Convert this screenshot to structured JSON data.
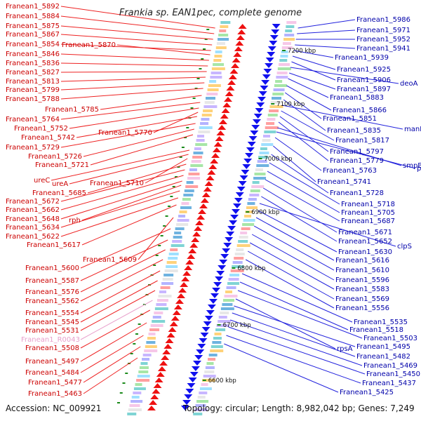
{
  "title": "Frankia sp. EAN1pec, complete genome",
  "accession": "Accession: NC_009921",
  "topology": "Topology: circular; Length: 8,982,042 bp; Genes: 7,249",
  "colors": {
    "left_label": "#cc0000",
    "left_line": "#ee2222",
    "right_label": "#0000aa",
    "right_line": "#2222dd",
    "rna_label": "#e8a0cc",
    "backbone": "#8a8a8a",
    "kbp_tick": "#1a8a1a"
  },
  "kbp_ticks": [
    "7200 kbp",
    "7100 kbp",
    "7000 kbp",
    "6900 kbp",
    "6800 kbp",
    "6700 kbp",
    "6600 kbp"
  ],
  "left_labels": [
    {
      "text": "Franean1_5892",
      "type": "cds"
    },
    {
      "text": "Franean1_5884",
      "type": "cds"
    },
    {
      "text": "Franean1_5875",
      "type": "cds"
    },
    {
      "text": "Franean1_5867",
      "type": "cds"
    },
    {
      "text": "Franean1_5854",
      "type": "cds"
    },
    {
      "text": "Franean1_5870",
      "type": "cds"
    },
    {
      "text": "Franean1_5846",
      "type": "cds"
    },
    {
      "text": "Franean1_5836",
      "type": "cds"
    },
    {
      "text": "Franean1_5827",
      "type": "cds"
    },
    {
      "text": "Franean1_5813",
      "type": "cds"
    },
    {
      "text": "Franean1_5799",
      "type": "cds"
    },
    {
      "text": "Franean1_5788",
      "type": "cds"
    },
    {
      "text": "Franean1_5785",
      "type": "cds"
    },
    {
      "text": "Franean1_5764",
      "type": "cds"
    },
    {
      "text": "Franean1_5752",
      "type": "cds"
    },
    {
      "text": "Franean1_5770",
      "type": "cds"
    },
    {
      "text": "Franean1_5742",
      "type": "cds"
    },
    {
      "text": "Franean1_5729",
      "type": "cds"
    },
    {
      "text": "Franean1_5726",
      "type": "cds"
    },
    {
      "text": "Franean1_5721",
      "type": "cds"
    },
    {
      "text": "ureC",
      "type": "cds"
    },
    {
      "text": "ureA",
      "type": "cds"
    },
    {
      "text": "Franean1_5710",
      "type": "cds"
    },
    {
      "text": "Franean1_5685",
      "type": "cds"
    },
    {
      "text": "Franean1_5672",
      "type": "cds"
    },
    {
      "text": "Franean1_5662",
      "type": "cds"
    },
    {
      "text": "Franean1_5648",
      "type": "cds"
    },
    {
      "text": "rph",
      "type": "cds"
    },
    {
      "text": "Franean1_5634",
      "type": "cds"
    },
    {
      "text": "Franean1_5622",
      "type": "cds"
    },
    {
      "text": "Franean1_5617",
      "type": "cds"
    },
    {
      "text": "Franean1_5609",
      "type": "cds"
    },
    {
      "text": "Franean1_5600",
      "type": "cds"
    },
    {
      "text": "Franean1_5587",
      "type": "cds"
    },
    {
      "text": "Franean1_5576",
      "type": "cds"
    },
    {
      "text": "Franean1_5562",
      "type": "cds"
    },
    {
      "text": "Franean1_5554",
      "type": "cds"
    },
    {
      "text": "Franean1_5545",
      "type": "cds"
    },
    {
      "text": "Franean1_5531",
      "type": "cds"
    },
    {
      "text": "Franean1_R0043",
      "type": "rna"
    },
    {
      "text": "Franean1_5508",
      "type": "cds"
    },
    {
      "text": "Franean1_5497",
      "type": "cds"
    },
    {
      "text": "Franean1_5484",
      "type": "cds"
    },
    {
      "text": "Franean1_5477",
      "type": "cds"
    },
    {
      "text": "Franean1_5463",
      "type": "cds"
    }
  ],
  "right_labels": [
    {
      "text": "Franean1_5986"
    },
    {
      "text": "Franean1_5971"
    },
    {
      "text": "Franean1_5952"
    },
    {
      "text": "Franean1_5941"
    },
    {
      "text": "Franean1_5939"
    },
    {
      "text": "Franean1_5925"
    },
    {
      "text": "Franean1_5906"
    },
    {
      "text": "deoA"
    },
    {
      "text": "Franean1_5897"
    },
    {
      "text": "Franean1_5883"
    },
    {
      "text": "Franean1_5866"
    },
    {
      "text": "Franean1_5851"
    },
    {
      "text": "Franean1_5835"
    },
    {
      "text": "manB"
    },
    {
      "text": "Franean1_5817"
    },
    {
      "text": "Franean1_5797"
    },
    {
      "text": "Franean1_5779"
    },
    {
      "text": "smpB"
    },
    {
      "text": "prfB"
    },
    {
      "text": "Franean1_5763"
    },
    {
      "text": "Franean1_5741"
    },
    {
      "text": "Franean1_5728"
    },
    {
      "text": "Franean1_5718"
    },
    {
      "text": "Franean1_5705"
    },
    {
      "text": "Franean1_5687"
    },
    {
      "text": "Franean1_5671"
    },
    {
      "text": "Franean1_5652"
    },
    {
      "text": "clpS"
    },
    {
      "text": "Franean1_5630"
    },
    {
      "text": "Franean1_5616"
    },
    {
      "text": "Franean1_5610"
    },
    {
      "text": "Franean1_5596"
    },
    {
      "text": "Franean1_5583"
    },
    {
      "text": "Franean1_5569"
    },
    {
      "text": "Franean1_5556"
    },
    {
      "text": "Franean1_5535"
    },
    {
      "text": "Franean1_5518"
    },
    {
      "text": "Franean1_5503"
    },
    {
      "text": "rpsA"
    },
    {
      "text": "Franean1_5495"
    },
    {
      "text": "Franean1_5482"
    },
    {
      "text": "Franean1_5469"
    },
    {
      "text": "Franean1_5450"
    },
    {
      "text": "Franean1_5437"
    },
    {
      "text": "Franean1_5425"
    }
  ]
}
